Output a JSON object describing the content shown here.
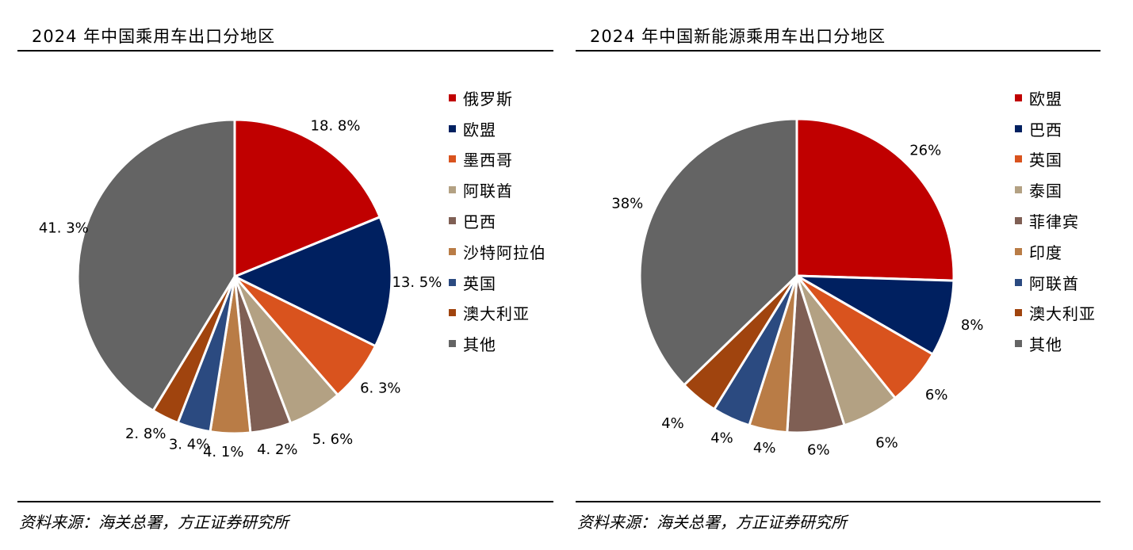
{
  "chart_data": [
    {
      "type": "pie",
      "title": "2024 年中国乘用车出口分地区",
      "source": "资料来源：海关总署，方正证券研究所",
      "slices": [
        {
          "label": "俄罗斯",
          "value": 18.8,
          "value_label": "18. 8%",
          "color": "#C00000"
        },
        {
          "label": "欧盟",
          "value": 13.5,
          "value_label": "13. 5%",
          "color": "#002060"
        },
        {
          "label": "墨西哥",
          "value": 6.3,
          "value_label": "6. 3%",
          "color": "#D9531E"
        },
        {
          "label": "阿联酋",
          "value": 5.6,
          "value_label": "5. 6%",
          "color": "#B3A183"
        },
        {
          "label": "巴西",
          "value": 4.2,
          "value_label": "4. 2%",
          "color": "#7F5F54"
        },
        {
          "label": "沙特阿拉伯",
          "value": 4.1,
          "value_label": "4. 1%",
          "color": "#B97C46"
        },
        {
          "label": "英国",
          "value": 3.4,
          "value_label": "3. 4%",
          "color": "#2B4A80"
        },
        {
          "label": "澳大利亚",
          "value": 2.8,
          "value_label": "2. 8%",
          "color": "#A0440E"
        },
        {
          "label": "其他",
          "value": 41.3,
          "value_label": "41. 3%",
          "color": "#646464"
        }
      ]
    },
    {
      "type": "pie",
      "title": "2024 年中国新能源乘用车出口分地区",
      "source": "资料来源：海关总署，方正证券研究所",
      "slices": [
        {
          "label": "欧盟",
          "value": 26,
          "value_label": "26%",
          "color": "#C00000"
        },
        {
          "label": "巴西",
          "value": 8,
          "value_label": "8%",
          "color": "#002060"
        },
        {
          "label": "英国",
          "value": 6,
          "value_label": "6%",
          "color": "#D9531E"
        },
        {
          "label": "泰国",
          "value": 6,
          "value_label": "6%",
          "color": "#B3A183"
        },
        {
          "label": "菲律宾",
          "value": 6,
          "value_label": "6%",
          "color": "#7F5F54"
        },
        {
          "label": "印度",
          "value": 4,
          "value_label": "4%",
          "color": "#B97C46"
        },
        {
          "label": "阿联酋",
          "value": 4,
          "value_label": "4%",
          "color": "#2B4A80"
        },
        {
          "label": "澳大利亚",
          "value": 4,
          "value_label": "4%",
          "color": "#A0440E"
        },
        {
          "label": "其他",
          "value": 38,
          "value_label": "38%",
          "color": "#646464"
        }
      ]
    }
  ]
}
